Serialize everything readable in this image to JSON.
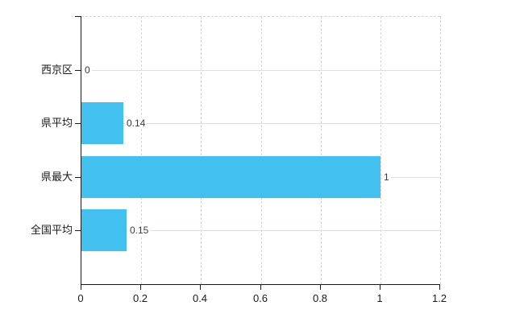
{
  "chart_data": {
    "type": "bar",
    "orientation": "horizontal",
    "title": "",
    "xlabel": "",
    "ylabel": "",
    "categories": [
      "西京区",
      "県平均",
      "県最大",
      "全国平均"
    ],
    "values": [
      0,
      0.14,
      1,
      0.15
    ],
    "value_labels": [
      "0",
      "0.14",
      "1",
      "0.15"
    ],
    "xlim": [
      0,
      1.2
    ],
    "xticks": [
      0,
      0.2,
      0.4,
      0.6,
      0.8,
      1,
      1.2
    ],
    "xtick_labels": [
      "0",
      "0.2",
      "0.4",
      "0.6",
      "0.8",
      "1",
      "1.2"
    ],
    "grid": "vertical dashed gridlines at each x tick; light horizontal guide line at each category center; dashed top border",
    "legend": "none",
    "colors": {
      "bar_fill": "#42c0f0",
      "axis": "#1a1a1a",
      "vertical_grid": "#d4d4d4",
      "category_guide_line": "#dbe2db",
      "value_label_text": "#3a3a3a",
      "tick_label_text": "#1a1a1a",
      "background": "#ffffff"
    }
  }
}
